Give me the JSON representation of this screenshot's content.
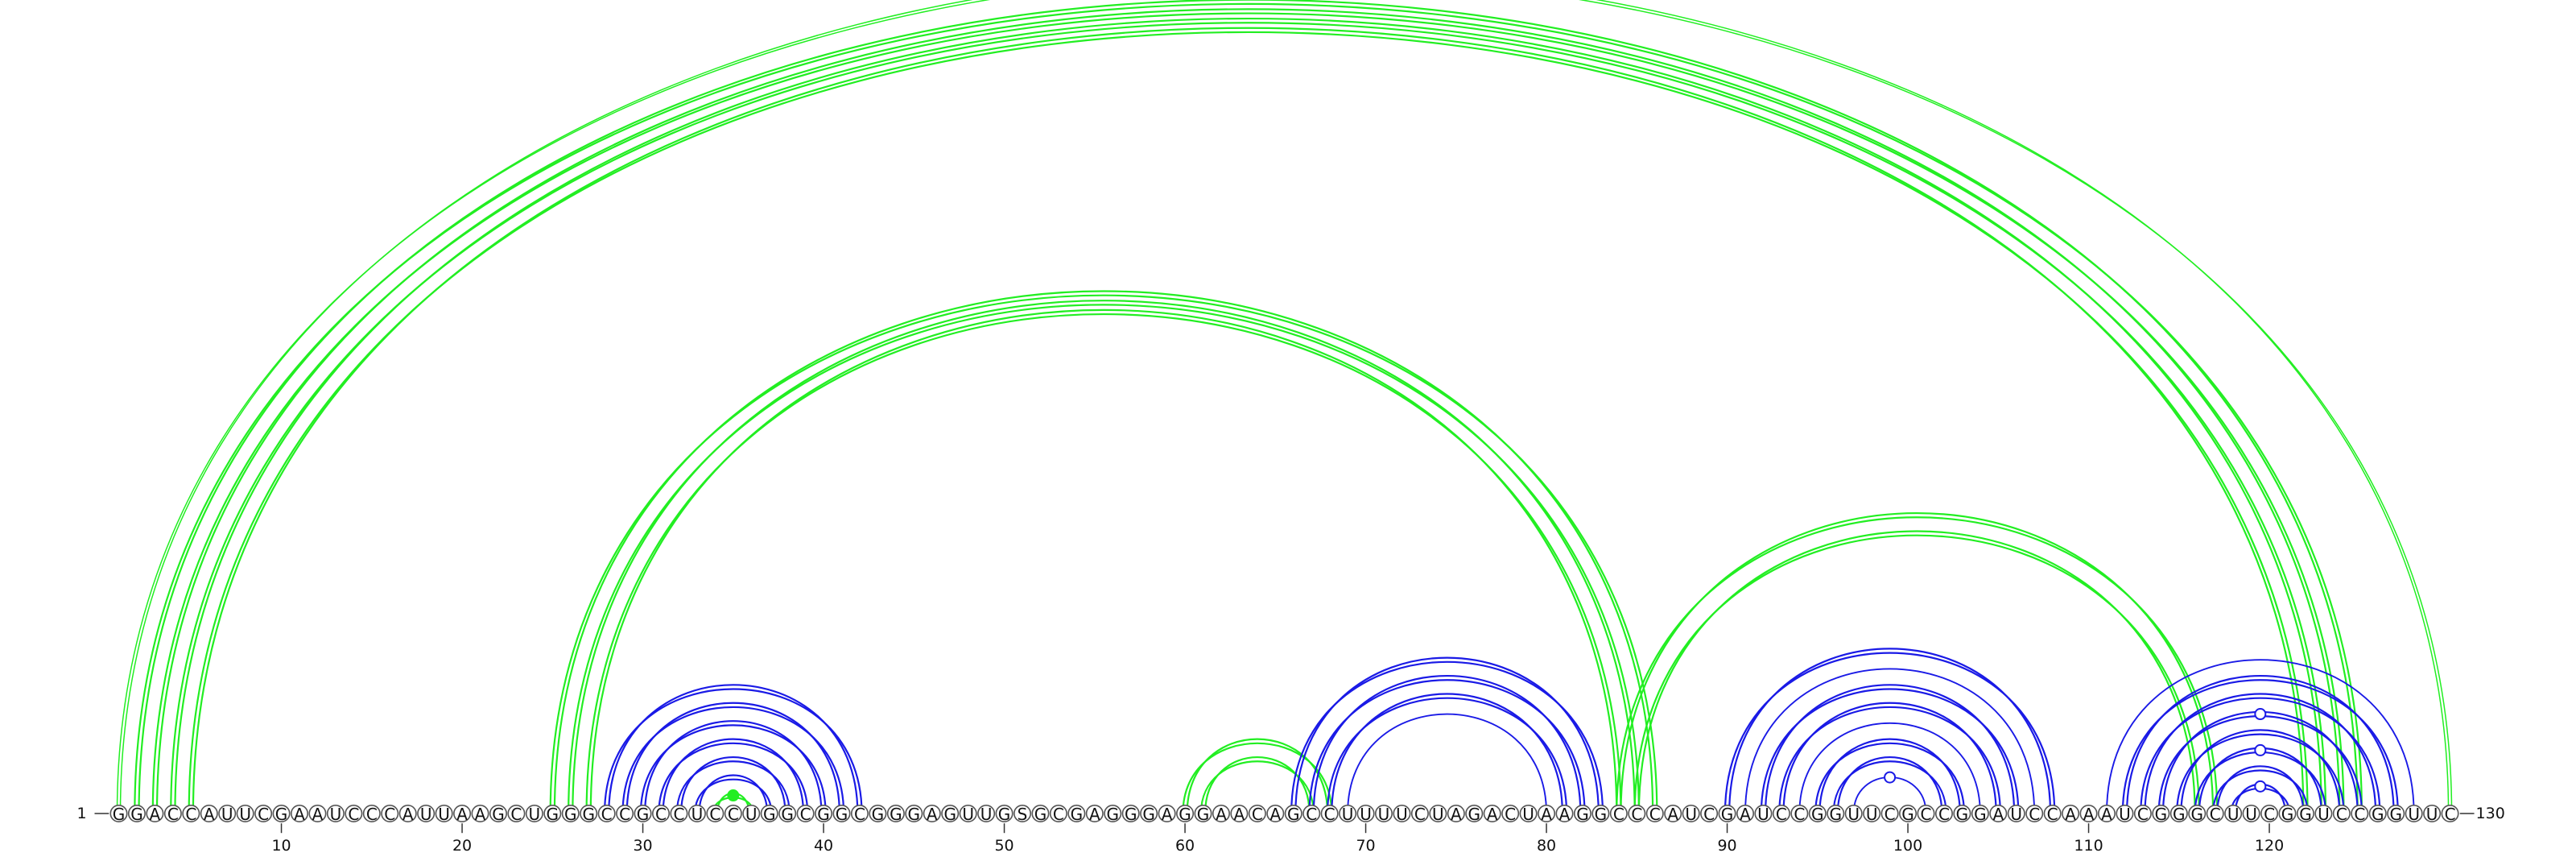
{
  "sequence": "GGACCAUUCGAAUCCCAUUAAGCUGGGCCGCCUCCUGGCGGCGGGAGUUGSGCGAGGGAGGAACAGCCUUUUCUAGACUAAGGCCCAUCGAUCCGGUUCGCCGGAUCCAAAUCGGGCUUCGGUCCGGUUC",
  "start_label": "1",
  "end_label": "130",
  "ticks": [
    10,
    20,
    30,
    40,
    50,
    60,
    70,
    80,
    90,
    100,
    110,
    120
  ],
  "colors": {
    "green": "#22ee22",
    "blue": "#1a1ae6"
  },
  "arcs": [
    {
      "i": 1,
      "j": 130,
      "color": "green",
      "style": "thin-double"
    },
    {
      "i": 2,
      "j": 125,
      "color": "green",
      "style": "double"
    },
    {
      "i": 3,
      "j": 124,
      "color": "green",
      "style": "double"
    },
    {
      "i": 4,
      "j": 123,
      "color": "green",
      "style": "double"
    },
    {
      "i": 5,
      "j": 122,
      "color": "green",
      "style": "double"
    },
    {
      "i": 25,
      "j": 86,
      "color": "green",
      "style": "double"
    },
    {
      "i": 26,
      "j": 85,
      "color": "green",
      "style": "double"
    },
    {
      "i": 27,
      "j": 84,
      "color": "green",
      "style": "double"
    },
    {
      "i": 28,
      "j": 42,
      "color": "blue",
      "style": "double"
    },
    {
      "i": 29,
      "j": 41,
      "color": "blue",
      "style": "double"
    },
    {
      "i": 30,
      "j": 40,
      "color": "blue",
      "style": "double"
    },
    {
      "i": 31,
      "j": 39,
      "color": "blue",
      "style": "double"
    },
    {
      "i": 32,
      "j": 38,
      "color": "blue",
      "style": "double"
    },
    {
      "i": 33,
      "j": 37,
      "color": "blue",
      "style": "double"
    },
    {
      "i": 34,
      "j": 36,
      "color": "green",
      "style": "double"
    },
    {
      "i": 60,
      "j": 68,
      "color": "green",
      "style": "double"
    },
    {
      "i": 61,
      "j": 67,
      "color": "green",
      "style": "double"
    },
    {
      "i": 66,
      "j": 83,
      "color": "blue",
      "style": "double"
    },
    {
      "i": 67,
      "j": 82,
      "color": "blue",
      "style": "double"
    },
    {
      "i": 68,
      "j": 81,
      "color": "blue",
      "style": "double"
    },
    {
      "i": 69,
      "j": 80,
      "color": "blue",
      "style": "single"
    },
    {
      "i": 84,
      "j": 117,
      "color": "green",
      "style": "double"
    },
    {
      "i": 85,
      "j": 116,
      "color": "green",
      "style": "double"
    },
    {
      "i": 90,
      "j": 108,
      "color": "blue",
      "style": "double"
    },
    {
      "i": 91,
      "j": 107,
      "color": "blue",
      "style": "single"
    },
    {
      "i": 92,
      "j": 106,
      "color": "blue",
      "style": "double"
    },
    {
      "i": 93,
      "j": 105,
      "color": "blue",
      "style": "double"
    },
    {
      "i": 94,
      "j": 104,
      "color": "blue",
      "style": "single"
    },
    {
      "i": 95,
      "j": 103,
      "color": "blue",
      "style": "double"
    },
    {
      "i": 96,
      "j": 102,
      "color": "blue",
      "style": "double"
    },
    {
      "i": 97,
      "j": 101,
      "color": "blue",
      "style": "single"
    },
    {
      "i": 111,
      "j": 128,
      "color": "blue",
      "style": "single"
    },
    {
      "i": 112,
      "j": 127,
      "color": "blue",
      "style": "double"
    },
    {
      "i": 113,
      "j": 126,
      "color": "blue",
      "style": "double"
    },
    {
      "i": 114,
      "j": 125,
      "color": "blue",
      "style": "double"
    },
    {
      "i": 115,
      "j": 124,
      "color": "blue",
      "style": "double"
    },
    {
      "i": 116,
      "j": 123,
      "color": "blue",
      "style": "double"
    },
    {
      "i": 117,
      "j": 122,
      "color": "blue",
      "style": "double"
    },
    {
      "i": 118,
      "j": 121,
      "color": "blue",
      "style": "double"
    }
  ],
  "markers": [
    {
      "i": 1,
      "j": 130,
      "color": "green",
      "type": "open"
    },
    {
      "i": 34,
      "j": 36,
      "color": "green",
      "type": "filled"
    },
    {
      "i": 97,
      "j": 101,
      "color": "blue",
      "type": "open"
    },
    {
      "i": 114,
      "j": 125,
      "color": "blue",
      "type": "open"
    },
    {
      "i": 116,
      "j": 123,
      "color": "blue",
      "type": "open"
    },
    {
      "i": 118,
      "j": 121,
      "color": "blue",
      "type": "open"
    }
  ]
}
